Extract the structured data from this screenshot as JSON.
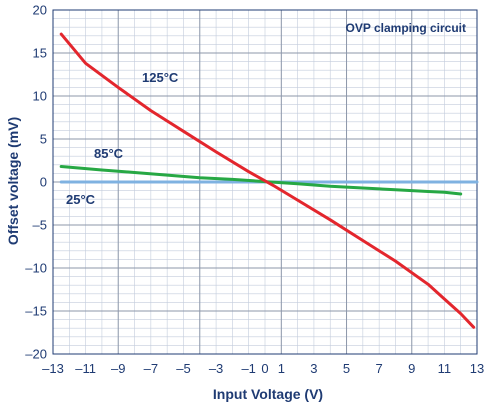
{
  "chart_data": {
    "type": "line",
    "title": "",
    "xlabel": "Input Voltage (V)",
    "ylabel": "Offset voltage (mV)",
    "xlim": [
      -13,
      13
    ],
    "ylim": [
      -20,
      20
    ],
    "x_ticks": [
      "–13",
      "–11",
      "–9",
      "–7",
      "–5",
      "–3",
      "–1",
      "0",
      "1",
      "3",
      "5",
      "7",
      "9",
      "11",
      "13"
    ],
    "y_ticks": [
      "–20",
      "–15",
      "–10",
      "–5",
      "0",
      "5",
      "10",
      "15",
      "20"
    ],
    "grid": true,
    "annotation": "OVP clamping circuit",
    "series": [
      {
        "name": "125°C",
        "color": "#e3262d",
        "x": [
          -12.5,
          -11,
          -9,
          -7,
          -5,
          -3,
          -1,
          0.5,
          2,
          4,
          6,
          8,
          10,
          11,
          12,
          12.8
        ],
        "y": [
          17.2,
          13.8,
          11.0,
          8.3,
          5.9,
          3.5,
          1.2,
          -0.4,
          -2.1,
          -4.4,
          -6.8,
          -9.2,
          -11.9,
          -13.6,
          -15.3,
          -16.9
        ]
      },
      {
        "name": "85°C",
        "color": "#27a844",
        "x": [
          -12.5,
          -10,
          -8,
          -6,
          -4,
          -2,
          0,
          2,
          4,
          6,
          8,
          10,
          11,
          12
        ],
        "y": [
          1.8,
          1.4,
          1.1,
          0.8,
          0.5,
          0.3,
          0.05,
          -0.2,
          -0.5,
          -0.7,
          -0.9,
          -1.1,
          -1.2,
          -1.4
        ]
      },
      {
        "name": "25°C",
        "color": "#7fb2e1",
        "x": [
          -12.5,
          13
        ],
        "y": [
          0,
          0
        ]
      }
    ]
  }
}
